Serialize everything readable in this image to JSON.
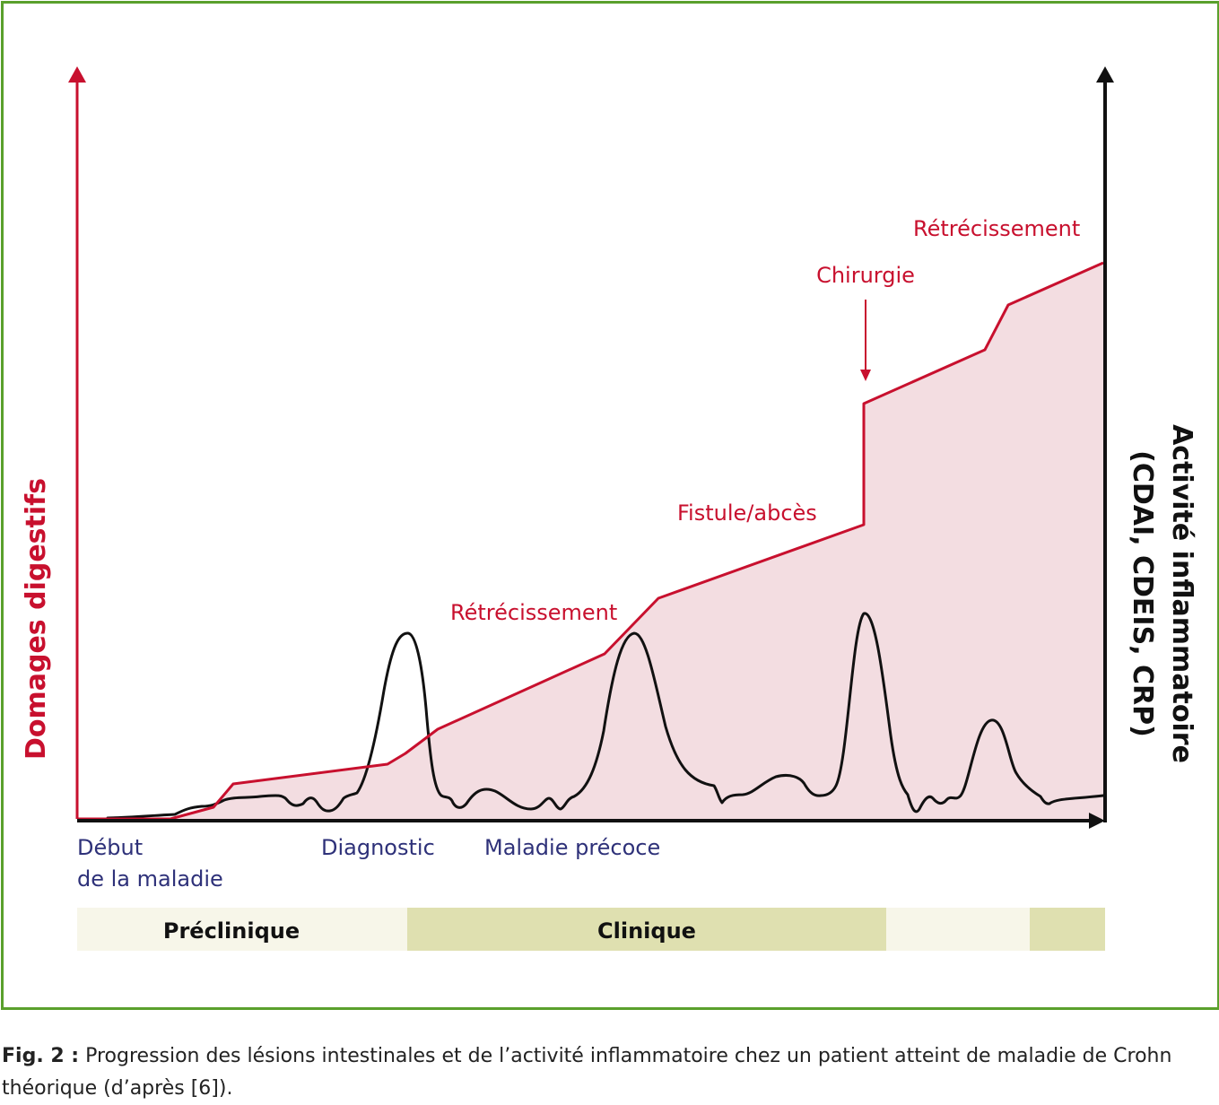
{
  "figure": {
    "colors": {
      "frame": "#5aa02c",
      "damage": "#c8102e",
      "damage_fill": "#f3dde1",
      "activity": "#111111",
      "timeline_label": "#2e3179",
      "phase_light": "#f7f6e9",
      "phase_dark": "#dfe0b0"
    },
    "left_axis_label": "Domages digestifs",
    "right_axis_label_line1": "Activité inflammatoire",
    "right_axis_label_line2": "(CDAI, CDEIS, CRP)",
    "event_labels": {
      "retrecissement_1": "Rétrécissement",
      "fistule": "Fistule/abcès",
      "chirurgie": "Chirurgie",
      "retrecissement_2": "Rétrécissement"
    },
    "timeline_labels": {
      "debut_line1": "Début",
      "debut_line2": "de la maladie",
      "diagnostic": "Diagnostic",
      "maladie_precoce": "Maladie précoce"
    },
    "phases": {
      "preclinique": "Préclinique",
      "clinique": "Clinique"
    }
  },
  "caption": {
    "label": "Fig. 2 :",
    "text": " Progression des lésions intestinales et de l’activité inflammatoire chez un patient atteint de maladie de Crohn théorique (d’après [6])."
  }
}
